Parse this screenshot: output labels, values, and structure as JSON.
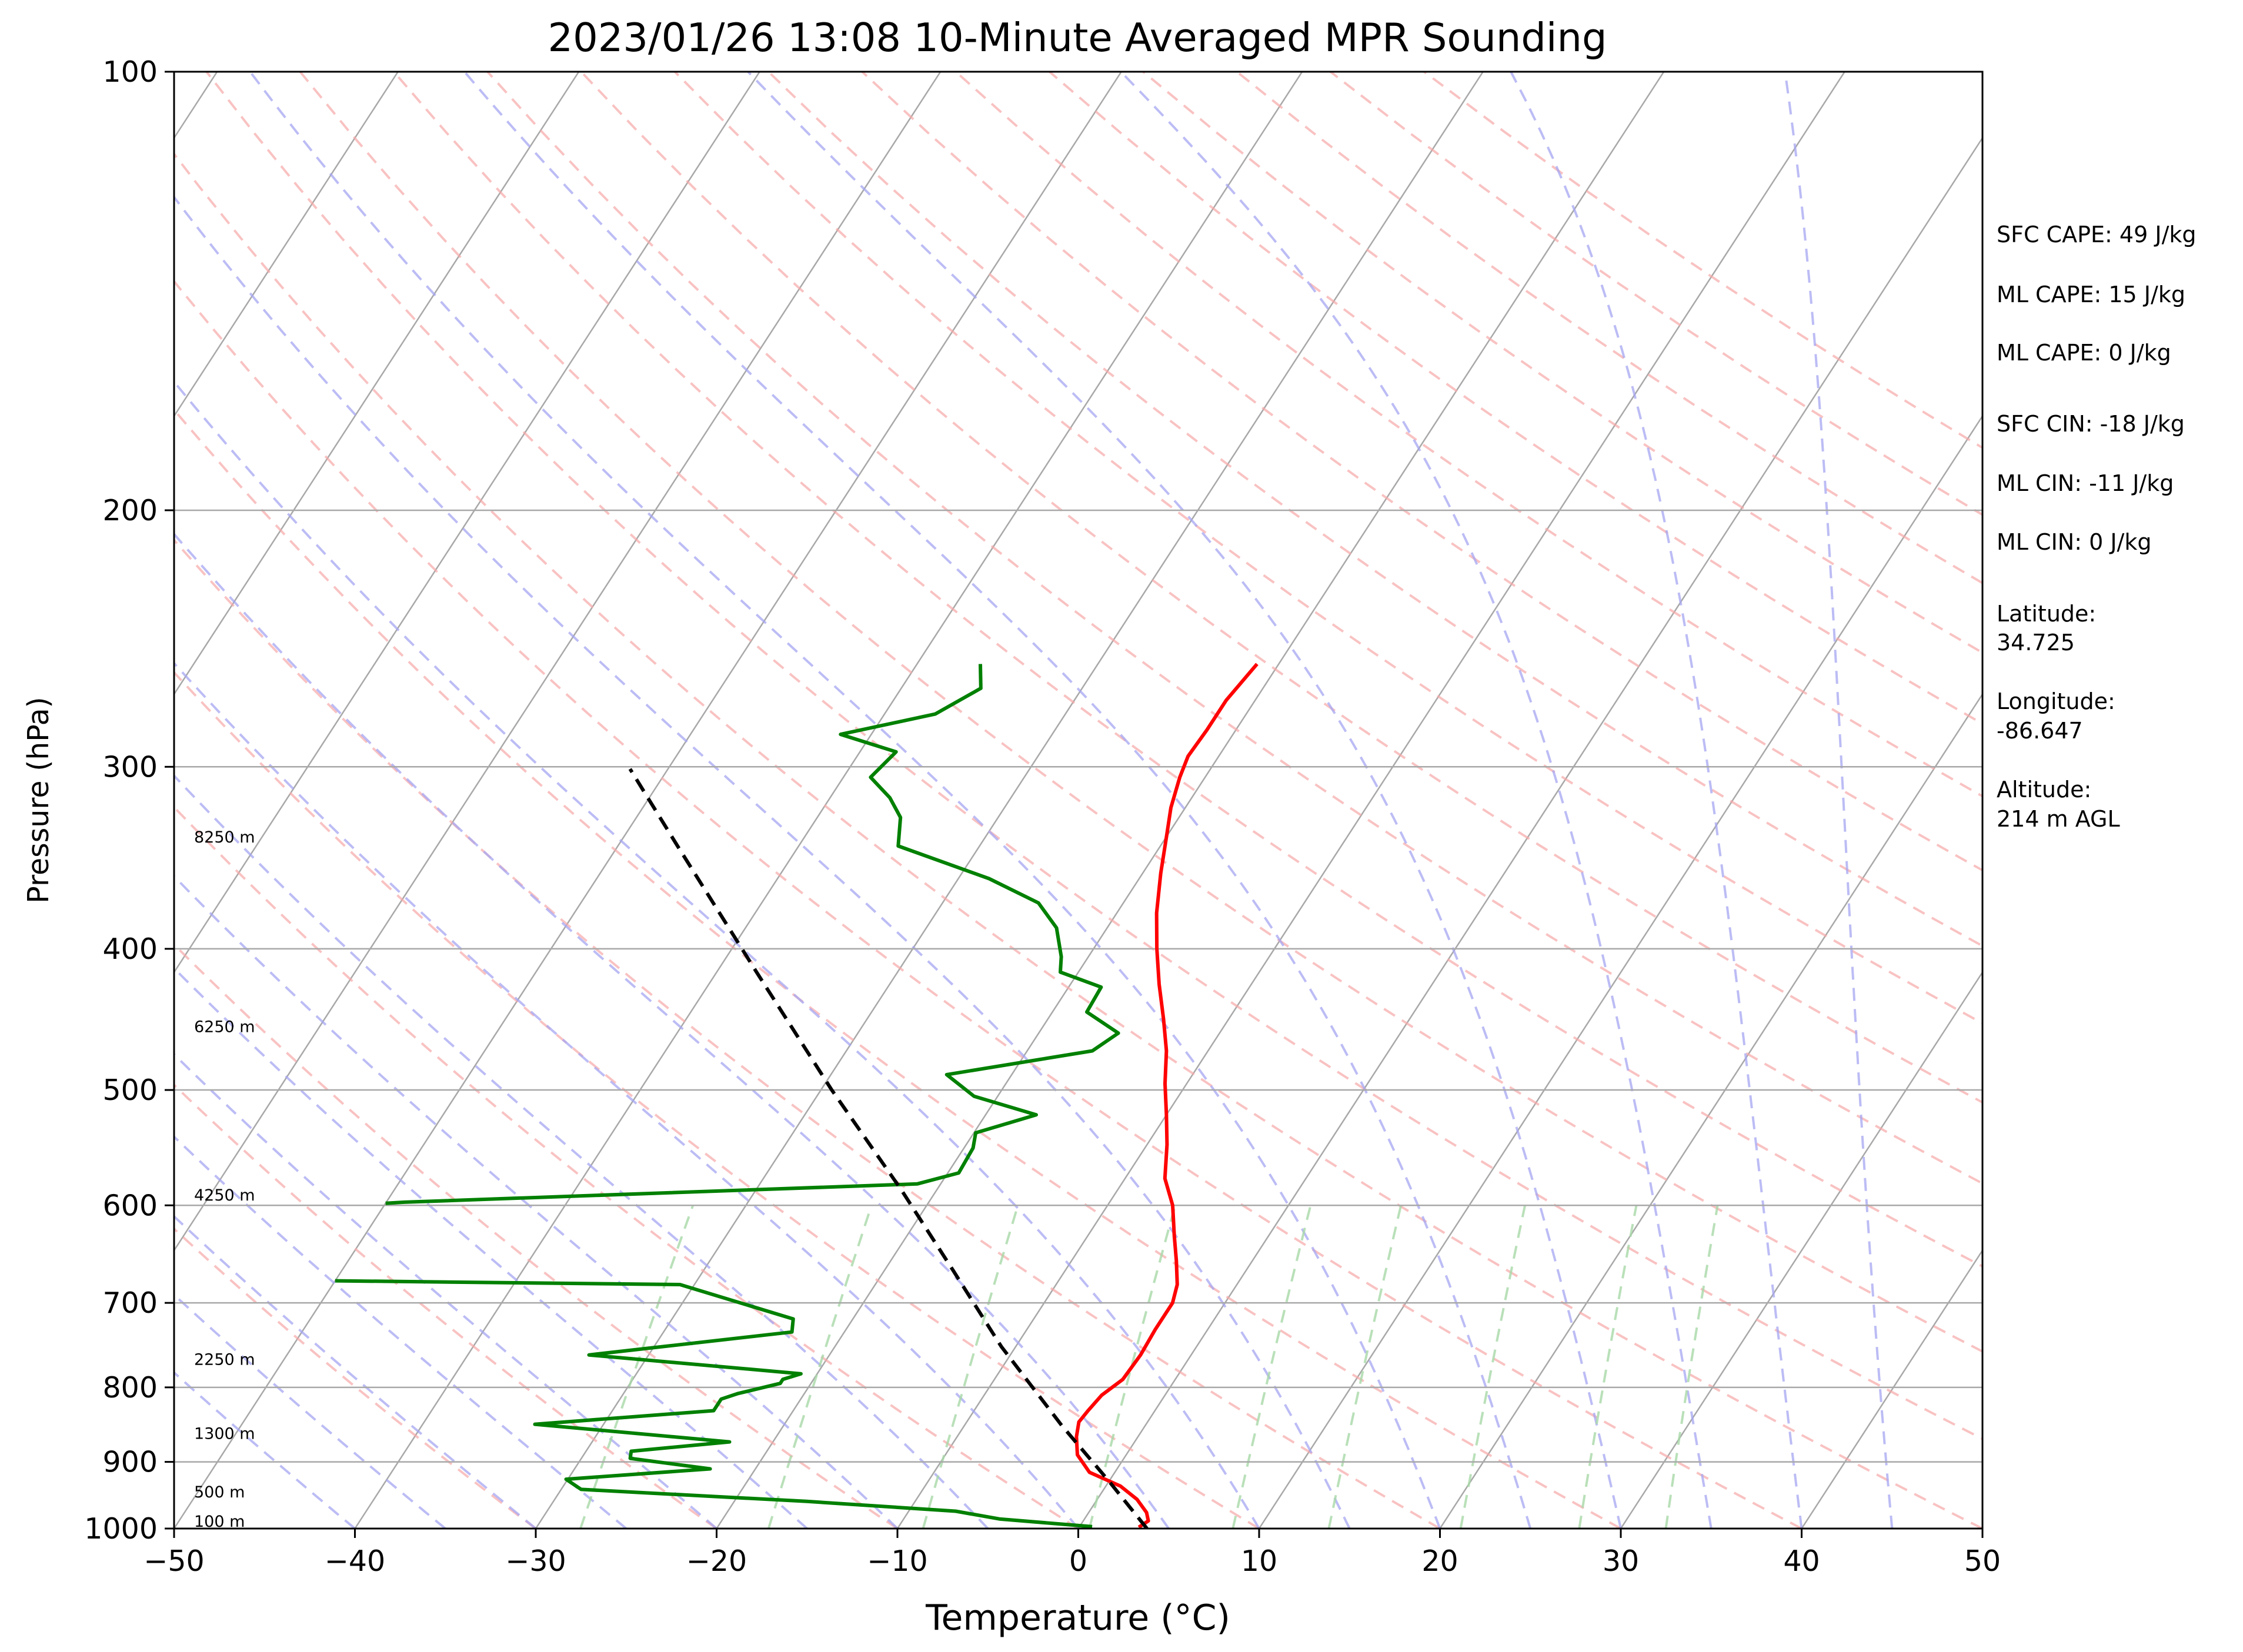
{
  "chart_data": {
    "type": "line",
    "title": "2023/01/26 13:08 10-Minute Averaged MPR Sounding",
    "xlabel": "Temperature (°C)",
    "ylabel": "Pressure (hPa)",
    "xlim": [
      -50,
      50
    ],
    "ylim": [
      1000,
      100
    ],
    "y_scale": "log",
    "skew": "skew-T",
    "grid": true,
    "x_ticks": [
      "−50",
      "−40",
      "−30",
      "−20",
      "−10",
      "0",
      "10",
      "20",
      "30",
      "40",
      "50"
    ],
    "y_ticks": [
      "100",
      "200",
      "300",
      "400",
      "500",
      "600",
      "700",
      "800",
      "900",
      "1000"
    ],
    "series": [
      {
        "color": "#ff0000",
        "points": [
          [
            -21.2,
            255
          ],
          [
            -21.6,
            270
          ],
          [
            -21.6,
            283
          ],
          [
            -21.7,
            295
          ],
          [
            -21.4,
            305
          ],
          [
            -20.8,
            320
          ],
          [
            -20.0,
            335
          ],
          [
            -19.0,
            355
          ],
          [
            -17.8,
            378
          ],
          [
            -16.5,
            400
          ],
          [
            -15.1,
            423
          ],
          [
            -13.6,
            447
          ],
          [
            -12.3,
            470
          ],
          [
            -11.2,
            495
          ],
          [
            -10.0,
            520
          ],
          [
            -8.9,
            545
          ],
          [
            -7.8,
            575
          ],
          [
            -6.4,
            600
          ],
          [
            -5.2,
            630
          ],
          [
            -4.2,
            655
          ],
          [
            -3.3,
            680
          ],
          [
            -2.9,
            700
          ],
          [
            -2.9,
            730
          ],
          [
            -2.8,
            760
          ],
          [
            -2.9,
            790
          ],
          [
            -3.5,
            810
          ],
          [
            -3.7,
            830
          ],
          [
            -3.8,
            845
          ],
          [
            -3.4,
            865
          ],
          [
            -2.7,
            890
          ],
          [
            -1.4,
            915
          ],
          [
            0.8,
            935
          ],
          [
            2.2,
            955
          ],
          [
            3.2,
            975
          ],
          [
            3.6,
            988
          ],
          [
            3.3,
            998
          ]
        ]
      },
      {
        "color": "#008000",
        "points": [
          [
            -36.5,
            255
          ],
          [
            -35.6,
            265
          ],
          [
            -37.2,
            276
          ],
          [
            -41.7,
            285
          ],
          [
            -38.0,
            293
          ],
          [
            -38.5,
            305
          ],
          [
            -36.7,
            315
          ],
          [
            -35.4,
            325
          ],
          [
            -34.5,
            340
          ],
          [
            -28.3,
            358
          ],
          [
            -24.7,
            372
          ],
          [
            -22.8,
            387
          ],
          [
            -21.5,
            405
          ],
          [
            -21.0,
            415
          ],
          [
            -18.2,
            425
          ],
          [
            -18.1,
            442
          ],
          [
            -15.6,
            457
          ],
          [
            -16.4,
            470
          ],
          [
            -23.6,
            488
          ],
          [
            -21.3,
            505
          ],
          [
            -17.2,
            520
          ],
          [
            -19.9,
            535
          ],
          [
            -19.5,
            548
          ],
          [
            -19.4,
            570
          ],
          [
            -21.3,
            580
          ],
          [
            -49.0,
            597
          ],
          [
            -50.0,
            598
          ]
        ]
      },
      {
        "color": "#008000",
        "points": [
          [
            -50.0,
            676
          ],
          [
            -30.8,
            680
          ],
          [
            -23.3,
            718
          ],
          [
            -22.9,
            733
          ],
          [
            -33.3,
            760
          ],
          [
            -20.9,
            783
          ],
          [
            -21.7,
            790
          ],
          [
            -21.7,
            795
          ],
          [
            -23.7,
            808
          ],
          [
            -24.4,
            815
          ],
          [
            -24.4,
            830
          ],
          [
            -33.8,
            848
          ],
          [
            -22.4,
            872
          ],
          [
            -27.5,
            885
          ],
          [
            -27.3,
            895
          ],
          [
            -22.5,
            910
          ],
          [
            -30.1,
            925
          ],
          [
            -28.9,
            940
          ],
          [
            -16.0,
            958
          ],
          [
            -7.4,
            973
          ],
          [
            -4.7,
            985
          ],
          [
            0.7,
            997
          ]
        ]
      },
      {
        "color": "#000000",
        "dashed": true,
        "points": [
          [
            3.8,
            1000
          ],
          [
            0.0,
            928
          ],
          [
            -4.6,
            850
          ],
          [
            -10.8,
            750
          ],
          [
            -16.2,
            665
          ],
          [
            -22.0,
            585
          ],
          [
            -29.4,
            500
          ],
          [
            -37.8,
            415
          ],
          [
            -46.7,
            340
          ],
          [
            -52.1,
            301
          ]
        ]
      }
    ],
    "height_labels": [
      "100 m",
      "500 m",
      "1300 m",
      "2250 m",
      "4250 m",
      "6250 m",
      "8250 m"
    ],
    "info": [
      "SFC CAPE: 49 J/kg",
      "ML CAPE: 15 J/kg",
      "ML CAPE: 0 J/kg",
      "SFC CIN: -18 J/kg",
      "ML CIN: -11 J/kg",
      "ML CIN: 0 J/kg",
      "Latitude:",
      "34.725",
      "Longitude:",
      "-86.647",
      "Altitude:",
      "214 m AGL"
    ]
  }
}
